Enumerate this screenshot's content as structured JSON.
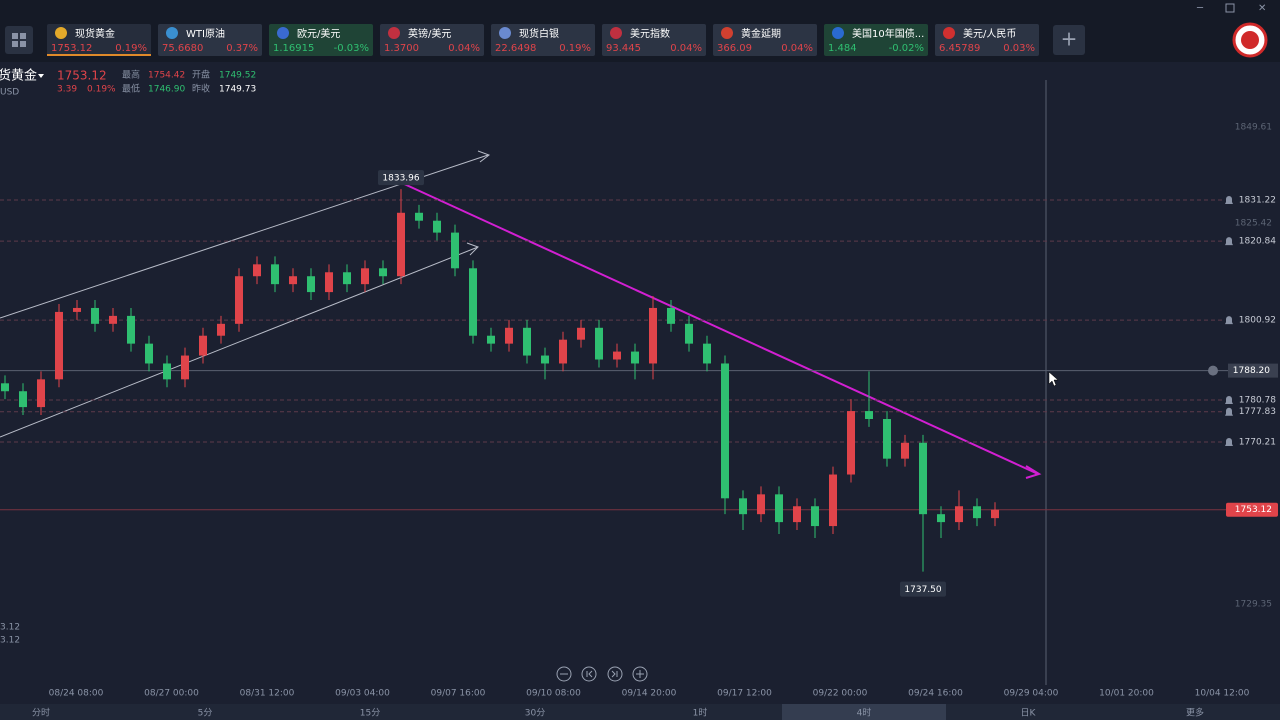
{
  "tabs": [
    {
      "name": "现货黄金",
      "price": "1753.12",
      "change": "0.19%"
    },
    {
      "name": "WTI原油",
      "price": "75.6680",
      "change": "0.37%"
    },
    {
      "name": "欧元/美元",
      "price": "1.16915",
      "change": "-0.03%"
    },
    {
      "name": "英镑/美元",
      "price": "1.3700",
      "change": "0.04%"
    },
    {
      "name": "现货白银",
      "price": "22.6498",
      "change": "0.19%"
    },
    {
      "name": "美元指数",
      "price": "93.445",
      "change": "0.04%"
    },
    {
      "name": "黄金延期",
      "price": "366.09",
      "change": "0.04%"
    },
    {
      "name": "美国10年国债...",
      "price": "1.484",
      "change": "-0.02%"
    },
    {
      "name": "美元/人民币",
      "price": "6.45789",
      "change": "0.03%"
    }
  ],
  "header": {
    "title": "货黄金",
    "price": "1753.12",
    "change": "3.39",
    "change_pct": "0.19%",
    "currency": "USD",
    "high_label": "最高",
    "high": "1754.42",
    "open_label": "开盘",
    "open": "1749.52",
    "low_label": "最低",
    "low": "1746.90",
    "prev_label": "昨收",
    "prev_close": "1749.73"
  },
  "left_labels": [
    "3.12",
    "3.12"
  ],
  "chart": {
    "ylim": [
      1715.23,
      1861.48
    ],
    "axis_ticks": [
      1849.61,
      1825.42,
      1729.35
    ],
    "alerts": [
      1831.22,
      1820.84,
      1800.92,
      1780.78,
      1777.83,
      1770.21
    ],
    "crosshair": {
      "value": 1788.2,
      "label": "1788.20"
    },
    "last_price": 1753.12,
    "annotations": [
      1833.96,
      {
        "value": 1737.5,
        "label": "1737.50"
      }
    ],
    "x_labels": [
      "08/24 08:00",
      "08/27 00:00",
      "08/31 12:00",
      "09/03 04:00",
      "09/07 16:00",
      "09/10 08:00",
      "09/14 20:00",
      "09/17 12:00",
      "09/22 00:00",
      "09/24 16:00",
      "09/29 04:00",
      "10/01 20:00",
      "10/04 12:00"
    ],
    "candles": [
      {
        "o": 1785,
        "h": 1787,
        "l": 1781,
        "c": 1783
      },
      {
        "o": 1783,
        "h": 1785,
        "l": 1777,
        "c": 1779
      },
      {
        "o": 1779,
        "h": 1788,
        "l": 1777,
        "c": 1786
      },
      {
        "o": 1786,
        "h": 1805,
        "l": 1784,
        "c": 1803
      },
      {
        "o": 1803,
        "h": 1806,
        "l": 1801,
        "c": 1804
      },
      {
        "o": 1804,
        "h": 1806,
        "l": 1798,
        "c": 1800
      },
      {
        "o": 1800,
        "h": 1804,
        "l": 1798,
        "c": 1802
      },
      {
        "o": 1802,
        "h": 1804,
        "l": 1793,
        "c": 1795
      },
      {
        "o": 1795,
        "h": 1797,
        "l": 1788,
        "c": 1790
      },
      {
        "o": 1790,
        "h": 1792,
        "l": 1784,
        "c": 1786
      },
      {
        "o": 1786,
        "h": 1794,
        "l": 1784,
        "c": 1792
      },
      {
        "o": 1792,
        "h": 1799,
        "l": 1790,
        "c": 1797
      },
      {
        "o": 1797,
        "h": 1802,
        "l": 1795,
        "c": 1800
      },
      {
        "o": 1800,
        "h": 1814,
        "l": 1798,
        "c": 1812
      },
      {
        "o": 1812,
        "h": 1817,
        "l": 1810,
        "c": 1815
      },
      {
        "o": 1815,
        "h": 1817,
        "l": 1808,
        "c": 1810
      },
      {
        "o": 1810,
        "h": 1814,
        "l": 1808,
        "c": 1812
      },
      {
        "o": 1812,
        "h": 1814,
        "l": 1806,
        "c": 1808
      },
      {
        "o": 1808,
        "h": 1815,
        "l": 1806,
        "c": 1813
      },
      {
        "o": 1813,
        "h": 1815,
        "l": 1808,
        "c": 1810
      },
      {
        "o": 1810,
        "h": 1816,
        "l": 1808,
        "c": 1814
      },
      {
        "o": 1814,
        "h": 1816,
        "l": 1810,
        "c": 1812
      },
      {
        "o": 1812,
        "h": 1833.96,
        "l": 1810,
        "c": 1828
      },
      {
        "o": 1828,
        "h": 1830,
        "l": 1824,
        "c": 1826
      },
      {
        "o": 1826,
        "h": 1828,
        "l": 1821,
        "c": 1823
      },
      {
        "o": 1823,
        "h": 1825,
        "l": 1812,
        "c": 1814
      },
      {
        "o": 1814,
        "h": 1816,
        "l": 1795,
        "c": 1797
      },
      {
        "o": 1797,
        "h": 1799,
        "l": 1793,
        "c": 1795
      },
      {
        "o": 1795,
        "h": 1801,
        "l": 1793,
        "c": 1799
      },
      {
        "o": 1799,
        "h": 1801,
        "l": 1790,
        "c": 1792
      },
      {
        "o": 1792,
        "h": 1794,
        "l": 1786,
        "c": 1790
      },
      {
        "o": 1790,
        "h": 1798,
        "l": 1788,
        "c": 1796
      },
      {
        "o": 1796,
        "h": 1801,
        "l": 1794,
        "c": 1799
      },
      {
        "o": 1799,
        "h": 1801,
        "l": 1789,
        "c": 1791
      },
      {
        "o": 1791,
        "h": 1795,
        "l": 1789,
        "c": 1793
      },
      {
        "o": 1793,
        "h": 1795,
        "l": 1786,
        "c": 1790
      },
      {
        "o": 1790,
        "h": 1807,
        "l": 1786,
        "c": 1804
      },
      {
        "o": 1804,
        "h": 1806,
        "l": 1798,
        "c": 1800
      },
      {
        "o": 1800,
        "h": 1802,
        "l": 1793,
        "c": 1795
      },
      {
        "o": 1795,
        "h": 1797,
        "l": 1788,
        "c": 1790
      },
      {
        "o": 1790,
        "h": 1792,
        "l": 1752,
        "c": 1756
      },
      {
        "o": 1756,
        "h": 1758,
        "l": 1748,
        "c": 1752
      },
      {
        "o": 1752,
        "h": 1759,
        "l": 1750,
        "c": 1757
      },
      {
        "o": 1757,
        "h": 1759,
        "l": 1747,
        "c": 1750
      },
      {
        "o": 1750,
        "h": 1756,
        "l": 1748,
        "c": 1754
      },
      {
        "o": 1754,
        "h": 1756,
        "l": 1746,
        "c": 1749
      },
      {
        "o": 1749,
        "h": 1764,
        "l": 1747,
        "c": 1762
      },
      {
        "o": 1762,
        "h": 1781,
        "l": 1760,
        "c": 1778
      },
      {
        "o": 1778,
        "h": 1788,
        "l": 1774,
        "c": 1776
      },
      {
        "o": 1776,
        "h": 1778,
        "l": 1764,
        "c": 1766
      },
      {
        "o": 1766,
        "h": 1772,
        "l": 1764,
        "c": 1770
      },
      {
        "o": 1770,
        "h": 1772,
        "l": 1737.5,
        "c": 1752
      },
      {
        "o": 1752,
        "h": 1754,
        "l": 1746,
        "c": 1750
      },
      {
        "o": 1750,
        "h": 1758,
        "l": 1748,
        "c": 1754
      },
      {
        "o": 1754,
        "h": 1756,
        "l": 1749,
        "c": 1751
      },
      {
        "o": 1751,
        "h": 1755,
        "l": 1749,
        "c": 1753.12
      }
    ]
  },
  "timeframes": [
    "分时",
    "5分",
    "15分",
    "30分",
    "1时",
    "4时",
    "日K",
    "更多"
  ]
}
